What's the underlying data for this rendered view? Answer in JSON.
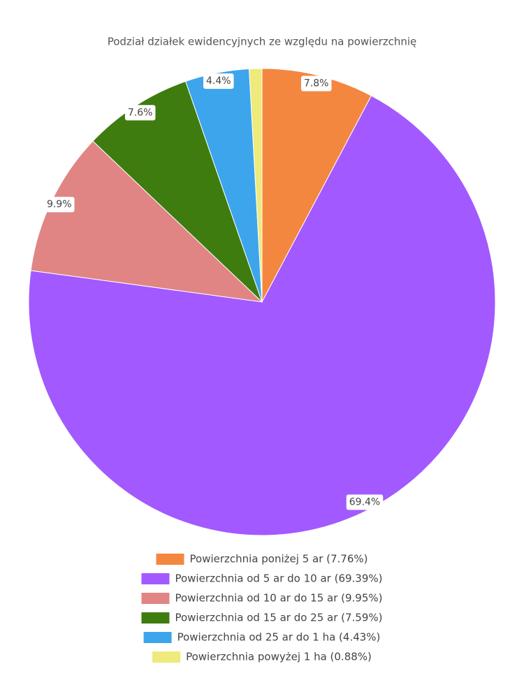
{
  "chart_data": {
    "type": "pie",
    "title": "Podział działek ewidencyjnych ze względu na powierzchnię",
    "categories": [
      "Powierzchnia poniżej 5 ar (7.76%)",
      "Powierzchnia od 5 ar do 10 ar (69.39%)",
      "Powierzchnia od 10 ar do 15 ar (9.95%)",
      "Powierzchnia od 15 ar do 25 ar (7.59%)",
      "Powierzchnia od 25 ar do 1 ha (4.43%)",
      "Powierzchnia powyżej 1 ha (0.88%)"
    ],
    "values": [
      7.76,
      69.39,
      9.95,
      7.59,
      4.43,
      0.88
    ],
    "value_labels": [
      "7.8%",
      "69.4%",
      "9.9%",
      "7.6%",
      "4.4%",
      null
    ],
    "colors": [
      "#f4873f",
      "#a259ff",
      "#e08584",
      "#3e7c0f",
      "#3ca5ec",
      "#eeea7c"
    ],
    "legend": "bottom"
  }
}
